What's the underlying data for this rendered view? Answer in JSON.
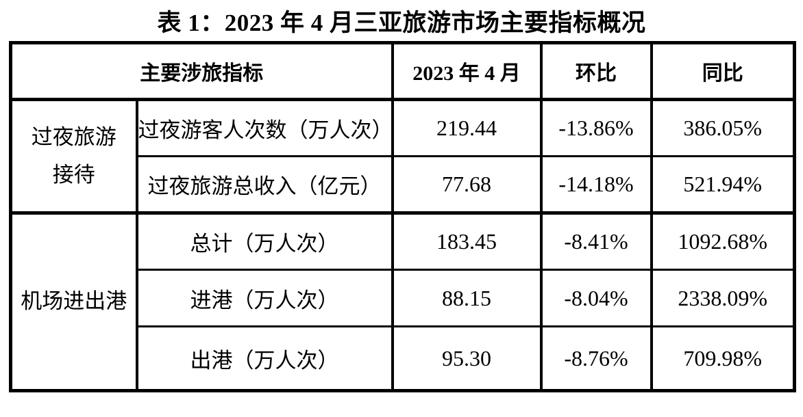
{
  "page": {
    "title": "表 1：2023 年 4 月三亚旅游市场主要指标概况",
    "background_color": "#ffffff",
    "text_color": "#000000",
    "border_color": "#000000"
  },
  "table": {
    "header": {
      "indicator": "主要涉旅指标",
      "period": "2023 年 4 月",
      "mom": "环比",
      "yoy": "同比"
    },
    "groups": [
      {
        "label": "过夜旅游\n接待"
      },
      {
        "label": "机场进出港"
      }
    ],
    "rows": [
      {
        "indicator": "过夜游客人次数（万人次）",
        "value": "219.44",
        "mom": "-13.86%",
        "yoy": "386.05%"
      },
      {
        "indicator": "过夜旅游总收入（亿元）",
        "value": "77.68",
        "mom": "-14.18%",
        "yoy": "521.94%"
      },
      {
        "indicator": "总计（万人次）",
        "value": "183.45",
        "mom": "-8.41%",
        "yoy": "1092.68%"
      },
      {
        "indicator": "进港（万人次）",
        "value": "88.15",
        "mom": "-8.04%",
        "yoy": "2338.09%"
      },
      {
        "indicator": "出港（万人次）",
        "value": "95.30",
        "mom": "-8.76%",
        "yoy": "709.98%"
      }
    ]
  }
}
